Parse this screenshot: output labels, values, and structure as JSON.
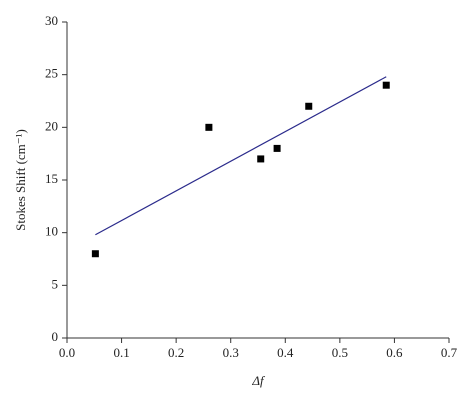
{
  "chart_data": {
    "type": "scatter",
    "x_label": "Δf",
    "y_label": "Stokes Shift (cm⁻¹)",
    "series": [
      {
        "x": [
          0.052,
          0.26,
          0.355,
          0.385,
          0.443,
          0.585
        ],
        "values": [
          8,
          20,
          17,
          18,
          22,
          24
        ],
        "color": "#000000"
      }
    ],
    "fit_line": {
      "x": [
        0.052,
        0.585
      ],
      "values": [
        9.8,
        24.8
      ],
      "color": "#2b2b8c"
    },
    "xlim": [
      0,
      0.7
    ],
    "xticks": [
      {
        "value": 0,
        "label": "0.0"
      },
      0.1,
      0.2,
      0.3,
      0.4,
      0.5,
      0.6,
      0.7
    ],
    "ylim": [
      0,
      30
    ],
    "yticks": [
      0,
      5,
      10,
      15,
      20,
      25,
      30
    ],
    "grid": false
  }
}
